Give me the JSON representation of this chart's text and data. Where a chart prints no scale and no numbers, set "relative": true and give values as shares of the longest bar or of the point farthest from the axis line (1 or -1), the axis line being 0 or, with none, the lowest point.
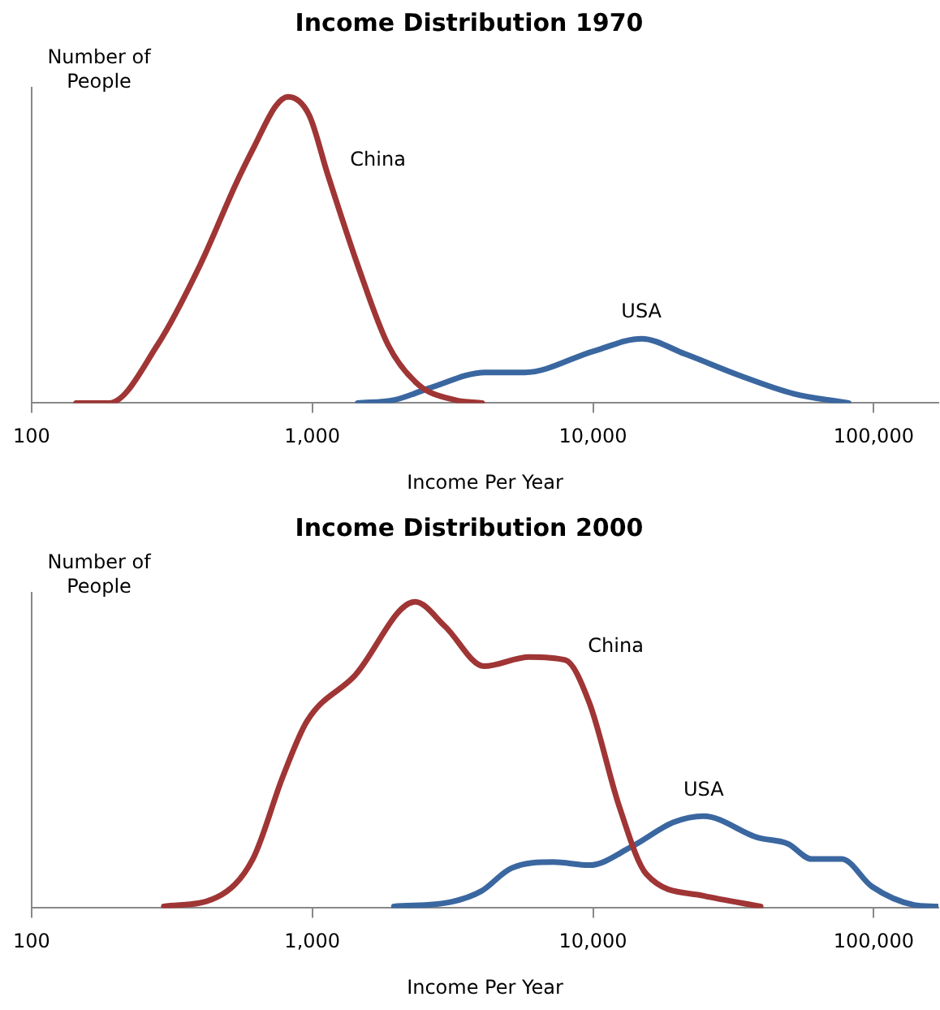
{
  "chart_data": [
    {
      "type": "line",
      "title": "Income Distribution 1970",
      "xlabel": "Income Per Year",
      "ylabel": "Number of People",
      "relative": true,
      "log": "x",
      "grid": false,
      "legend": false,
      "marker": "none",
      "line_style": "solid",
      "xlim": [
        100,
        170000
      ],
      "xticks": [
        100,
        {
          "value": 1000,
          "label": "1,000"
        },
        {
          "value": 10000,
          "label": "10,000"
        },
        {
          "value": 100000,
          "label": "100,000"
        }
      ],
      "series": [
        {
          "name": "China",
          "color": "#a03535",
          "x": [
            144,
            189,
            281,
            398,
            537,
            623,
            741,
            820,
            975,
            1132,
            1452,
            1862,
            2389,
            3221,
            4027
          ],
          "values": [
            0,
            0,
            0.19,
            0.45,
            0.72,
            0.84,
            0.97,
            1.0,
            0.94,
            0.75,
            0.45,
            0.19,
            0.06,
            0.01,
            0
          ]
        },
        {
          "name": "USA",
          "color": "#3a67a0",
          "x": [
            1452,
            1959,
            2637,
            4130,
            5702,
            10095,
            14880,
            21300,
            33300,
            52100,
            81400
          ],
          "values": [
            0,
            0.01,
            0.05,
            0.1,
            0.1,
            0.17,
            0.21,
            0.16,
            0.09,
            0.03,
            0
          ]
        }
      ]
    },
    {
      "type": "line",
      "title": "Income Distribution 2000",
      "xlabel": "Income Per Year",
      "ylabel": "Number of People",
      "relative": true,
      "log": "x",
      "grid": false,
      "legend": false,
      "marker": "none",
      "line_style": "solid",
      "xlim": [
        100,
        170000
      ],
      "xticks": [
        100,
        {
          "value": 1000,
          "label": "1,000"
        },
        {
          "value": 10000,
          "label": "10,000"
        },
        {
          "value": 100000,
          "label": "100,000"
        }
      ],
      "series": [
        {
          "name": "China",
          "color": "#a03535",
          "x": [
            296,
            457,
            614,
            786,
            957,
            1420,
            2324,
            2971,
            4094,
            5929,
            7965,
            9709,
            12420,
            15520,
            24780,
            39550
          ],
          "values": [
            0.005,
            0.035,
            0.16,
            0.43,
            0.61,
            0.76,
            1.0,
            0.92,
            0.79,
            0.82,
            0.81,
            0.67,
            0.33,
            0.11,
            0.04,
            0.005
          ]
        },
        {
          "name": "USA",
          "color": "#3a67a0",
          "x": [
            1954,
            3126,
            3999,
            5117,
            7226,
            9709,
            13710,
            19370,
            24780,
            38640,
            49430,
            60140,
            76910,
            98620,
            139300,
            167800
          ],
          "values": [
            0.005,
            0.02,
            0.055,
            0.13,
            0.15,
            0.14,
            0.2,
            0.28,
            0.3,
            0.23,
            0.21,
            0.16,
            0.16,
            0.07,
            0.01,
            0.005
          ]
        }
      ]
    }
  ]
}
